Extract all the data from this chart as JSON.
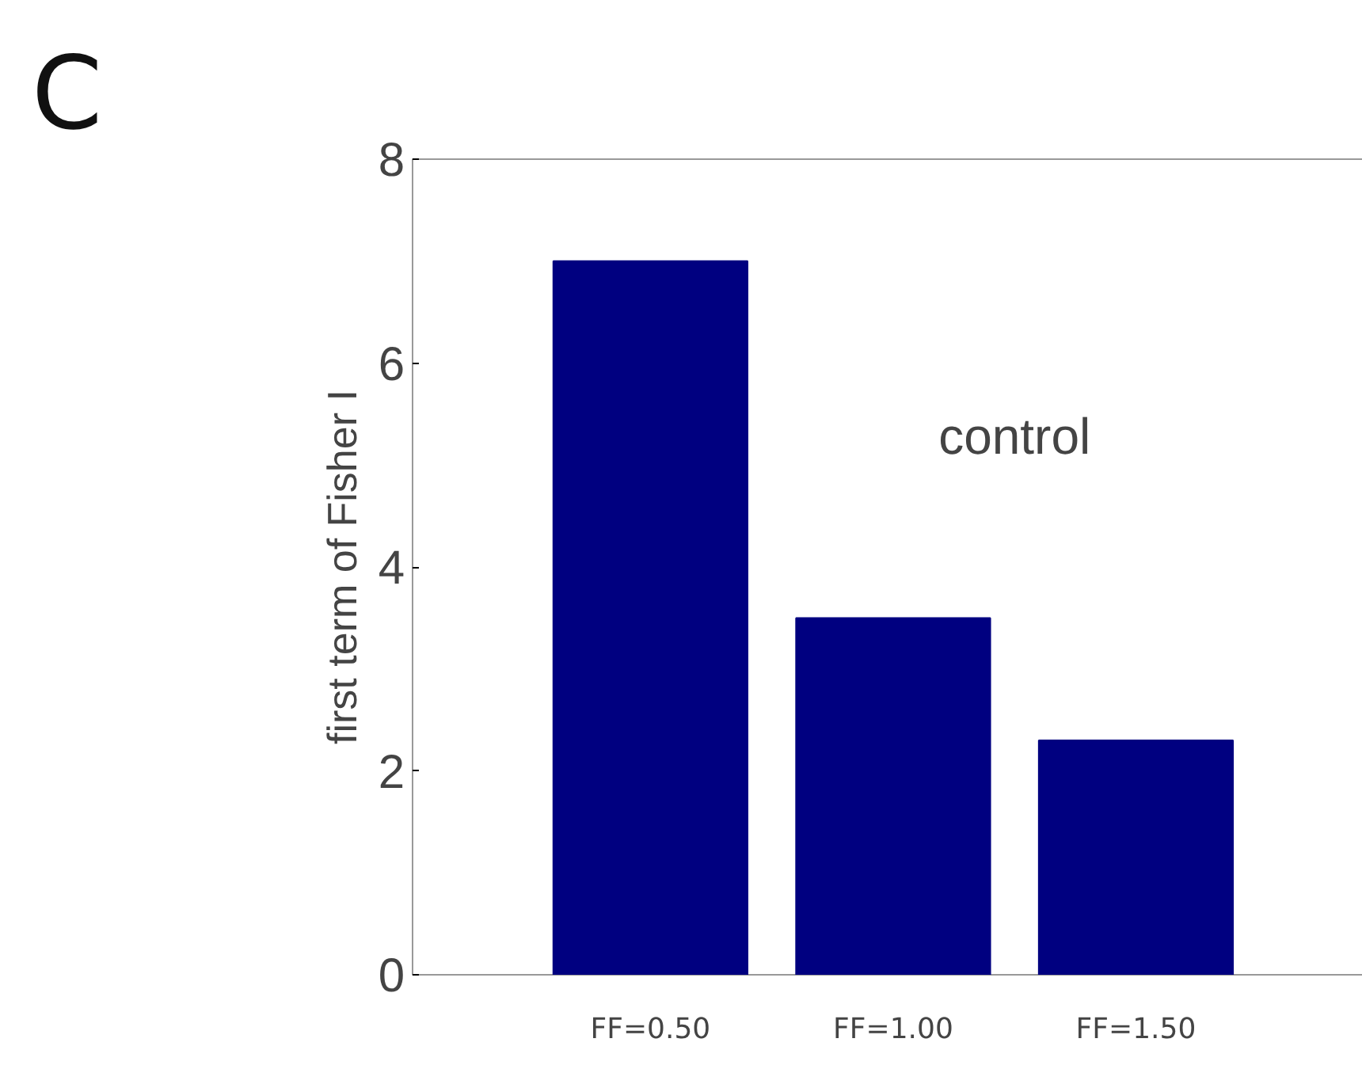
{
  "chart_data": {
    "type": "bar",
    "ylabel": "first term of Fisher I",
    "categories": [
      "FF=0.50",
      "FF=1.00",
      "FF=1.50"
    ],
    "values": [
      7.0,
      3.5,
      2.3
    ],
    "color": "#000080",
    "ylim": [
      0,
      8
    ],
    "yticks": [
      0,
      2,
      4,
      6,
      8
    ],
    "grid": false,
    "annotations": [
      "C",
      "control"
    ]
  }
}
